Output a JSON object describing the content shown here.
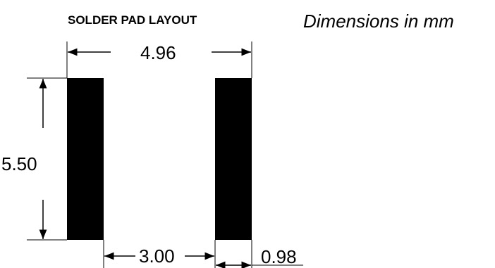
{
  "title": "SOLDER PAD LAYOUT",
  "units_note": "Dimensions in mm",
  "dimensions": {
    "overall_width": "4.96",
    "pad_height": "5.50",
    "pad_gap": "3.00",
    "pad_width": "0.98"
  },
  "colors": {
    "pad": "#000000",
    "line": "#000000",
    "background": "#ffffff"
  }
}
